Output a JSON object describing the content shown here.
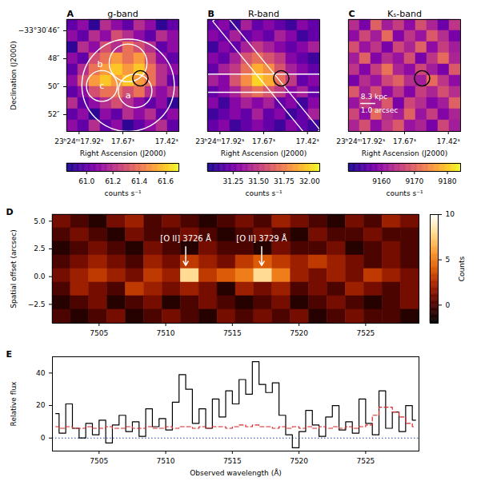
{
  "chart_data": [
    {
      "type": "heatmap",
      "panel": "A",
      "title": "g-band",
      "xlabel": "Right Ascension (J2000)",
      "ylabel": "Declination (J2000)",
      "xlim": [
        17.99,
        17.35
      ],
      "xticks": [
        {
          "value": 17.92,
          "label": "23ʰ24ᵐ17.92ˢ"
        },
        {
          "value": 17.67,
          "label": "17.67ˢ"
        },
        {
          "value": 17.42,
          "label": "17.42ˢ"
        }
      ],
      "ylim": [
        53.2,
        45.2
      ],
      "yticks": [
        {
          "value": 46,
          "label": "−33°30′46″"
        },
        {
          "value": 48,
          "label": "48″"
        },
        {
          "value": 50,
          "label": "50″"
        },
        {
          "value": 52,
          "label": "52″"
        }
      ],
      "color": "plasma",
      "cells": [
        [
          61.0,
          61.1,
          60.9,
          61.2,
          61.1,
          61.0,
          61.2,
          61.1,
          60.9,
          61.0
        ],
        [
          61.1,
          61.0,
          61.2,
          61.1,
          61.3,
          61.2,
          61.1,
          61.0,
          61.2,
          61.1
        ],
        [
          60.9,
          61.2,
          61.1,
          61.3,
          61.2,
          61.4,
          61.3,
          61.2,
          61.0,
          61.1
        ],
        [
          61.1,
          61.0,
          61.3,
          61.4,
          61.5,
          61.4,
          61.5,
          61.3,
          61.1,
          61.0
        ],
        [
          61.0,
          61.2,
          61.4,
          61.5,
          61.6,
          61.5,
          61.6,
          61.4,
          61.2,
          61.1
        ],
        [
          61.1,
          61.3,
          61.5,
          61.6,
          61.5,
          61.6,
          61.5,
          61.4,
          61.2,
          61.0
        ],
        [
          61.0,
          61.1,
          61.3,
          61.4,
          61.4,
          61.3,
          61.4,
          61.2,
          61.1,
          61.2
        ],
        [
          61.2,
          61.0,
          61.1,
          61.2,
          61.3,
          61.2,
          61.1,
          61.0,
          61.1,
          60.9
        ],
        [
          61.0,
          61.1,
          60.9,
          61.1,
          61.0,
          61.2,
          61.1,
          61.2,
          61.0,
          61.1
        ],
        [
          61.1,
          61.0,
          61.2,
          61.0,
          61.1,
          60.9,
          61.0,
          61.1,
          61.2,
          61.0
        ]
      ],
      "colorbar": {
        "lim": [
          60.85,
          61.7
        ],
        "ticks": [
          {
            "value": 61,
            "label": "61.0"
          },
          61.2,
          61.4,
          61.6
        ],
        "label": "counts s⁻¹"
      },
      "circles": [
        {
          "ra": 17.64,
          "dec": 49.9,
          "r": 3.3,
          "color": "white"
        },
        {
          "ra": 17.64,
          "dec": 48.3,
          "r": 1.35,
          "color": "white"
        },
        {
          "ra": 17.79,
          "dec": 49.95,
          "r": 1.1,
          "color": "white"
        },
        {
          "ra": 17.6,
          "dec": 50.3,
          "r": 1.2,
          "color": "white"
        },
        {
          "ra": 17.57,
          "dec": 49.4,
          "r": 0.55,
          "color": "black"
        }
      ],
      "region_labels": [
        {
          "text": "b",
          "ra": 17.8,
          "dec": 48.4
        },
        {
          "text": "c",
          "ra": 17.79,
          "dec": 49.95
        },
        {
          "text": "a",
          "ra": 17.64,
          "dec": 50.6
        }
      ]
    },
    {
      "type": "heatmap",
      "panel": "B",
      "title": "R-band",
      "xlabel": "Right Ascension (J2000)",
      "xlim": [
        17.99,
        17.35
      ],
      "xticks": [
        {
          "value": 17.92,
          "label": "23ʰ24ᵐ17.92ˢ"
        },
        {
          "value": 17.67,
          "label": "17.67ˢ"
        },
        {
          "value": 17.42,
          "label": "17.42ˢ"
        }
      ],
      "ylim": [
        53.2,
        45.2
      ],
      "tick_labels": "x",
      "color": "plasma",
      "cells": [
        [
          31.2,
          31.3,
          31.1,
          31.4,
          31.2,
          31.3,
          31.2,
          31.1,
          31.3,
          31.2
        ],
        [
          31.3,
          31.2,
          31.4,
          31.2,
          31.3,
          31.2,
          31.4,
          31.3,
          31.1,
          31.2
        ],
        [
          31.1,
          31.3,
          31.2,
          31.4,
          31.5,
          31.4,
          31.3,
          31.2,
          31.3,
          31.4
        ],
        [
          31.3,
          31.2,
          31.4,
          31.6,
          31.7,
          31.6,
          31.5,
          31.3,
          31.2,
          31.1
        ],
        [
          31.2,
          31.4,
          31.5,
          31.7,
          31.9,
          31.8,
          31.6,
          31.4,
          31.3,
          31.2
        ],
        [
          31.4,
          31.3,
          31.6,
          31.8,
          32.0,
          31.9,
          31.7,
          31.5,
          31.2,
          31.3
        ],
        [
          31.2,
          31.3,
          31.4,
          31.6,
          31.7,
          31.6,
          31.5,
          31.3,
          31.4,
          31.2
        ],
        [
          31.3,
          31.1,
          31.3,
          31.4,
          31.3,
          31.4,
          31.2,
          31.3,
          31.1,
          31.3
        ],
        [
          31.1,
          31.2,
          31.3,
          31.2,
          31.4,
          31.2,
          31.3,
          31.1,
          31.2,
          31.4
        ],
        [
          31.2,
          31.3,
          31.1,
          31.2,
          31.3,
          31.2,
          31.1,
          31.3,
          31.2,
          31.1
        ]
      ],
      "colorbar": {
        "lim": [
          31.0,
          32.1
        ],
        "ticks": [
          31.25,
          {
            "value": 31.5,
            "label": "31.50"
          },
          31.75,
          {
            "value": 32,
            "label": "32.00"
          }
        ],
        "label": "counts s⁻¹"
      },
      "slits": [
        [
          [
            17.961,
            45.32
          ],
          [
            17.899,
            44.68
          ],
          [
            17.349,
            53.08
          ],
          [
            17.411,
            53.72
          ]
        ],
        [
          [
            18.05,
            49.1
          ],
          [
            17.3,
            49.1
          ],
          [
            17.3,
            50.4
          ],
          [
            18.05,
            50.4
          ]
        ]
      ],
      "circles": [
        {
          "ra": 17.57,
          "dec": 49.4,
          "r": 0.55,
          "color": "black"
        }
      ]
    },
    {
      "type": "heatmap",
      "panel": "C",
      "title": "Kₛ-band",
      "xlabel": "Right Ascension (J2000)",
      "xlim": [
        17.99,
        17.35
      ],
      "xticks": [
        {
          "value": 17.92,
          "label": "23ʰ24ᵐ17.92ˢ"
        },
        {
          "value": 17.67,
          "label": "17.67ˢ"
        },
        {
          "value": 17.42,
          "label": "17.42ˢ"
        }
      ],
      "ylim": [
        53.2,
        45.2
      ],
      "tick_labels": "x",
      "color": "plasma",
      "cells": [
        [
          9164,
          9158,
          9170,
          9162,
          9166,
          9160,
          9168,
          9163,
          9157,
          9165
        ],
        [
          9160,
          9167,
          9162,
          9171,
          9159,
          9165,
          9161,
          9169,
          9164,
          9158
        ],
        [
          9168,
          9161,
          9165,
          9158,
          9167,
          9163,
          9170,
          9160,
          9166,
          9162
        ],
        [
          9162,
          9170,
          9159,
          9164,
          9161,
          9168,
          9158,
          9165,
          9171,
          9163
        ],
        [
          9165,
          9159,
          9166,
          9172,
          9163,
          9160,
          9167,
          9162,
          9158,
          9169
        ],
        [
          9158,
          9164,
          9161,
          9167,
          9170,
          9164,
          9162,
          9171,
          9165,
          9160
        ],
        [
          9169,
          9162,
          9168,
          9160,
          9165,
          9159,
          9166,
          9163,
          9168,
          9164
        ],
        [
          9161,
          9166,
          9163,
          9169,
          9158,
          9167,
          9164,
          9159,
          9162,
          9170
        ],
        [
          9167,
          9160,
          9171,
          9164,
          9162,
          9170,
          9161,
          9166,
          9159,
          9163
        ],
        [
          9163,
          9168,
          9160,
          9165,
          9169,
          9161,
          9163,
          9158,
          9167,
          9162
        ]
      ],
      "colorbar": {
        "lim": [
          9150,
          9184
        ],
        "ticks": [
          9160,
          9170,
          9180
        ],
        "label": "counts s⁻¹"
      },
      "circles": [
        {
          "ra": 17.57,
          "dec": 49.4,
          "r": 0.55,
          "color": "black"
        }
      ],
      "scale_bar": {
        "ra": [
          17.92,
          17.84
        ],
        "dec": 51.2,
        "labels": [
          "8.3 kpc",
          "1.0 arcsec"
        ]
      }
    },
    {
      "type": "heatmap",
      "panel": "D",
      "ylabel": "Spatial offset (arcsec)",
      "xlim": [
        7501.5,
        7529
      ],
      "xticks": [
        7505,
        7510,
        7515,
        7520,
        7525
      ],
      "ylim": [
        -4.2,
        5.6
      ],
      "yticks": [
        {
          "value": -2.5,
          "label": "−2.5"
        },
        {
          "value": 0,
          "label": "0.0"
        },
        2.5,
        {
          "value": 5,
          "label": "5.0"
        }
      ],
      "color": [
        "#000000",
        "#4a0000",
        "#a01800",
        "#e05a00",
        "#ffa030",
        "#ffe090",
        "#ffffff"
      ],
      "cells": [
        [
          1,
          0,
          -1,
          1,
          2,
          0,
          1,
          0,
          -1,
          0,
          1,
          0,
          2,
          1,
          0,
          -1,
          1,
          0,
          2,
          1
        ],
        [
          0,
          1,
          0,
          -1,
          1,
          0,
          0,
          1,
          0,
          -1,
          0,
          1,
          0,
          -1,
          1,
          0,
          0,
          1,
          0,
          0
        ],
        [
          -1,
          0,
          1,
          0,
          -1,
          1,
          0,
          -1,
          1,
          0,
          0,
          -1,
          1,
          0,
          0,
          1,
          -1,
          0,
          1,
          0
        ],
        [
          0,
          1,
          2,
          1,
          0,
          2,
          1,
          3,
          2,
          1,
          3,
          4,
          3,
          2,
          3,
          2,
          1,
          0,
          1,
          0
        ],
        [
          1,
          2,
          3,
          2,
          1,
          3,
          2,
          8,
          3,
          4,
          5,
          8,
          5,
          2,
          1,
          2,
          1,
          3,
          2,
          1
        ],
        [
          0,
          2,
          1,
          0,
          3,
          2,
          1,
          2,
          1,
          -1,
          2,
          1,
          2,
          0,
          1,
          0,
          2,
          1,
          0,
          1
        ],
        [
          -1,
          0,
          1,
          -1,
          0,
          1,
          -1,
          0,
          1,
          0,
          -1,
          0,
          1,
          -1,
          0,
          1,
          0,
          -1,
          0,
          1
        ],
        [
          0,
          -1,
          0,
          1,
          -1,
          0,
          1,
          0,
          -1,
          1,
          0,
          1,
          0,
          1,
          -1,
          0,
          1,
          0,
          0,
          -1
        ]
      ],
      "colorbar": {
        "lim": [
          -2,
          10
        ],
        "ticks": [
          0,
          5,
          10
        ],
        "label": "Counts"
      },
      "annotations": [
        {
          "text": "[O II] 3726 Å",
          "x": 7511.5,
          "y": 3.4,
          "arrow_from": 2.7,
          "arrow_to": 1.0
        },
        {
          "text": "[O II] 3729 Å",
          "x": 7517.2,
          "y": 3.4,
          "arrow_from": 2.7,
          "arrow_to": 1.0
        }
      ]
    },
    {
      "type": "line",
      "panel": "E",
      "xlabel": "Observed wavelength (Å)",
      "ylabel": "Relative flux",
      "xlim": [
        7501.5,
        7529
      ],
      "xticks": [
        7505,
        7510,
        7515,
        7520,
        7525
      ],
      "ylim": [
        -8,
        50
      ],
      "yticks": [
        0,
        20,
        40
      ],
      "x": [
        7501.75,
        7502.25,
        7502.75,
        7503.25,
        7503.75,
        7504.25,
        7504.75,
        7505.25,
        7505.75,
        7506.25,
        7506.75,
        7507.25,
        7507.75,
        7508.25,
        7508.75,
        7509.25,
        7509.75,
        7510.25,
        7510.75,
        7511.25,
        7511.75,
        7512.25,
        7512.75,
        7513.25,
        7513.75,
        7514.25,
        7514.75,
        7515.25,
        7515.75,
        7516.25,
        7516.75,
        7517.25,
        7517.75,
        7518.25,
        7518.75,
        7519.25,
        7519.75,
        7520.25,
        7520.75,
        7521.25,
        7521.75,
        7522.25,
        7522.75,
        7523.25,
        7523.75,
        7524.25,
        7524.75,
        7525.25,
        7525.75,
        7526.25,
        7526.75,
        7527.25,
        7527.75,
        7528.25,
        7528.75
      ],
      "series": [
        {
          "color": "black",
          "line_style": "solid",
          "values": [
            15,
            3,
            21,
            6,
            0,
            9,
            2,
            11,
            -3,
            8,
            14,
            4,
            10,
            1,
            18,
            7,
            12,
            5,
            22,
            39,
            30,
            9,
            18,
            6,
            24,
            13,
            29,
            21,
            36,
            27,
            47,
            33,
            28,
            34,
            14,
            2,
            -6,
            4,
            17,
            8,
            1,
            13,
            20,
            5,
            10,
            3,
            24,
            9,
            2,
            29,
            6,
            16,
            4,
            20,
            11
          ]
        },
        {
          "color": "#d62728",
          "line_style": "dashed",
          "values": [
            7,
            6,
            7,
            6,
            6,
            7,
            6,
            6,
            7,
            6,
            6,
            7,
            6,
            6,
            7,
            6,
            6,
            7,
            6,
            7,
            7,
            6,
            7,
            6,
            7,
            7,
            6,
            7,
            8,
            7,
            8,
            7,
            7,
            6,
            7,
            6,
            7,
            6,
            7,
            6,
            7,
            6,
            7,
            6,
            7,
            6,
            7,
            8,
            14,
            19,
            19,
            16,
            13,
            9,
            7
          ]
        }
      ],
      "hline": {
        "value": 0,
        "color": "#1f3fbf",
        "line_style": "dotted"
      }
    }
  ]
}
